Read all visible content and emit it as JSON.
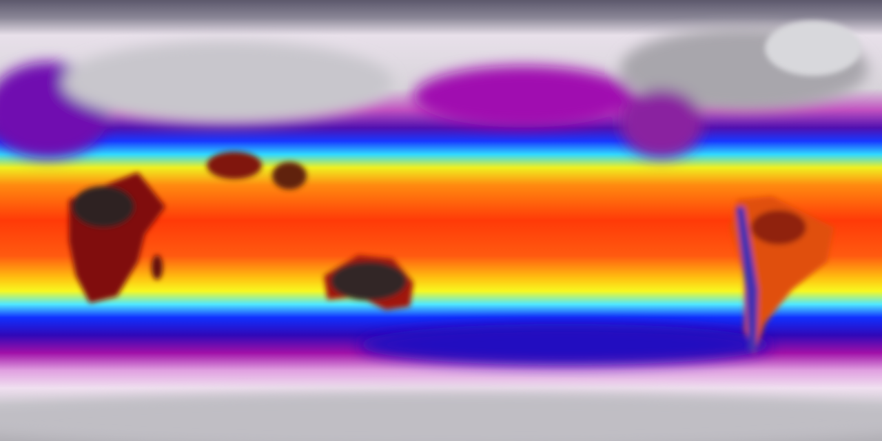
{
  "map": {
    "projection": "equirectangular",
    "variable_colormap": [
      "#6a6478",
      "#f2e9f2",
      "#c04cc0",
      "#9a0aa8",
      "#2a10c8",
      "#1030ff",
      "#30d8ff",
      "#f8f820",
      "#ff9a10",
      "#ff3a08",
      "#d01000",
      "#3a2828"
    ],
    "land_colors": {
      "ice": "#d8d6d8",
      "hot_land": "#2e2424",
      "cold_land": "#a8a6aa"
    }
  }
}
